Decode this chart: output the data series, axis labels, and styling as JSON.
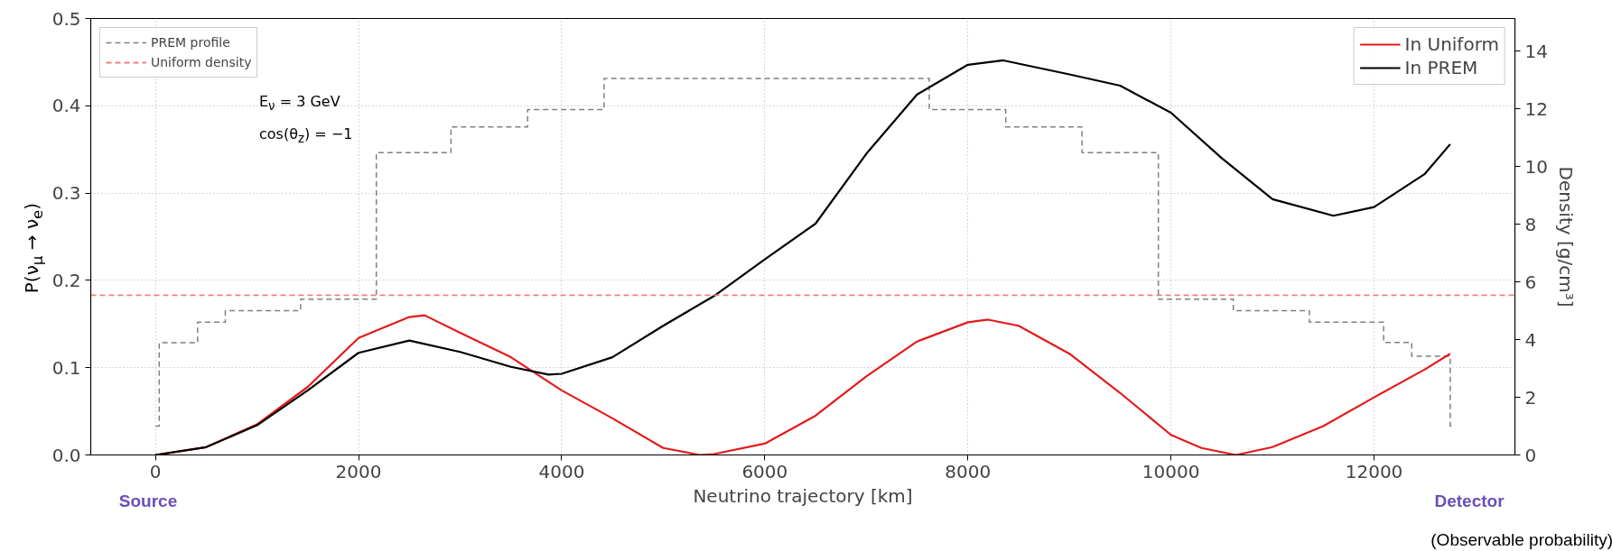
{
  "chart_data": {
    "type": "line",
    "xlabel": "Neutrino trajectory [km]",
    "ylabel": "P(ν$_{μ}$ → ν$_{e}$)",
    "y2label": "Density [g/cm³]",
    "annotations": [
      "E$_{ν}$ = 3 GeV",
      "cos(θ$_{z}$) = −1",
      "Source",
      "Detector",
      "(Observable probability)"
    ],
    "xlim": [
      -637,
      13387
    ],
    "xticks": [
      0,
      2000,
      4000,
      6000,
      8000,
      10000,
      12000
    ],
    "ylim": [
      0,
      0.5
    ],
    "yticks": [
      {
        "value": 0,
        "label": "0.0"
      },
      0.1,
      0.2,
      0.3,
      0.4,
      0.5
    ],
    "y2lim": [
      0,
      15.13
    ],
    "y2ticks": [
      0,
      2,
      4,
      6,
      8,
      10,
      12,
      14
    ],
    "grid": true,
    "legend": "top right",
    "series": [
      {
        "name": "PREM profile",
        "type": "step",
        "axis": "y2",
        "color": "#808080",
        "line_style": "dashed",
        "x": [
          0,
          37,
          415,
          688,
          1430,
          2175,
          2910,
          3665,
          4418,
          7620,
          8373,
          9124,
          9876,
          10614,
          11363,
          12094,
          12371,
          12750,
          12768
        ],
        "values": [
          1.0,
          3.89,
          4.6,
          5.0,
          5.4,
          10.48,
          11.37,
          11.97,
          13.05,
          11.97,
          11.37,
          10.48,
          5.4,
          5.0,
          4.6,
          3.9,
          3.42,
          1.0,
          1.0
        ]
      },
      {
        "name": "In Uniform",
        "color": "#e41a1c",
        "x": [
          0,
          500,
          1000,
          1500,
          2000,
          2500,
          2650,
          3000,
          3500,
          4000,
          4500,
          5000,
          5360,
          5500,
          6000,
          6500,
          7000,
          7500,
          8000,
          8200,
          8500,
          9000,
          9500,
          10000,
          10300,
          10640,
          11000,
          11500,
          12000,
          12500,
          12750
        ],
        "values": [
          0,
          0.009,
          0.035,
          0.078,
          0.134,
          0.158,
          0.16,
          0.14,
          0.112,
          0.074,
          0.042,
          0.008,
          0,
          0.001,
          0.013,
          0.045,
          0.09,
          0.13,
          0.152,
          0.155,
          0.148,
          0.116,
          0.071,
          0.023,
          0.008,
          0,
          0.009,
          0.033,
          0.066,
          0.098,
          0.116
        ]
      },
      {
        "name": "In PREM",
        "color": "#000000",
        "x": [
          0,
          500,
          1000,
          1500,
          2000,
          2500,
          3000,
          3500,
          3870,
          4000,
          4500,
          5000,
          5500,
          6000,
          6500,
          7000,
          7500,
          8000,
          8350,
          9000,
          9500,
          10000,
          10500,
          11000,
          11600,
          12000,
          12500,
          12750
        ],
        "values": [
          0,
          0.009,
          0.034,
          0.074,
          0.117,
          0.131,
          0.118,
          0.101,
          0.092,
          0.093,
          0.112,
          0.148,
          0.182,
          0.224,
          0.265,
          0.345,
          0.413,
          0.447,
          0.452,
          0.436,
          0.423,
          0.392,
          0.34,
          0.293,
          0.274,
          0.284,
          0.322,
          0.356
        ]
      }
    ],
    "ref_lines": [
      {
        "axis": "y2",
        "value": 5.54,
        "label": "Uniform density",
        "color": "#f08080",
        "line_style": "dashed"
      }
    ]
  }
}
